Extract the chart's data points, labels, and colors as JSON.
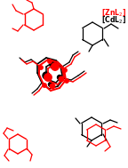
{
  "legend": {
    "zn_color": "#ff0000",
    "cd_color": "#000000"
  },
  "background": "#ffffff",
  "figsize": [
    1.44,
    1.89
  ],
  "dpi": 100
}
